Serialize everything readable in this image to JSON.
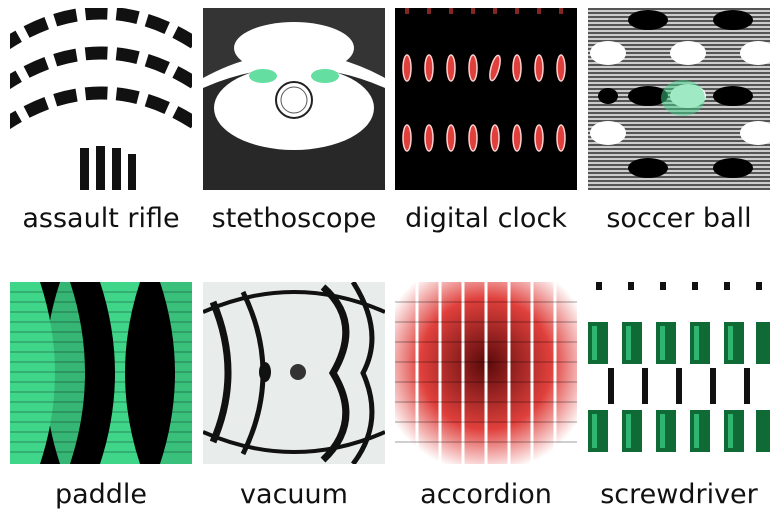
{
  "grid": {
    "items": [
      {
        "label": "assault rifle"
      },
      {
        "label": "stethoscope"
      },
      {
        "label": "digital clock"
      },
      {
        "label": "soccer ball"
      },
      {
        "label": "paddle"
      },
      {
        "label": "vacuum"
      },
      {
        "label": "accordion"
      },
      {
        "label": "screwdriver"
      }
    ]
  },
  "colors": {
    "background": "#ffffff",
    "green": "#3fd68a",
    "dark_green": "#0f6a35",
    "red": "#e0403c",
    "black": "#000000"
  }
}
